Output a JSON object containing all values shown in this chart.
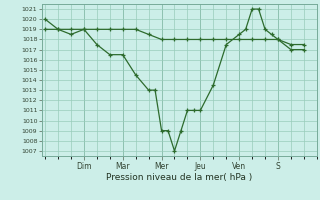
{
  "bg_color": "#cceee8",
  "grid_color": "#99ccbb",
  "line_color": "#2d6b2d",
  "xlabel": "Pression niveau de la mer( hPa )",
  "ylim": [
    1006.5,
    1021.5
  ],
  "yticks": [
    1007,
    1008,
    1009,
    1010,
    1011,
    1012,
    1013,
    1014,
    1015,
    1016,
    1017,
    1018,
    1019,
    1020,
    1021
  ],
  "xlim": [
    -0.15,
    11.35
  ],
  "day_positions": [
    1.65,
    3.3,
    4.95,
    6.6,
    8.25,
    9.9
  ],
  "day_labels": [
    "Dim",
    "Mar",
    "Mer",
    "Jeu",
    "Ven",
    "S"
  ],
  "vline_positions": [
    1.65,
    3.3,
    4.95,
    6.6,
    8.25,
    9.9
  ],
  "series1_x": [
    0.0,
    0.55,
    1.1,
    1.65,
    2.2,
    2.75,
    3.3,
    3.85,
    4.4,
    4.675,
    4.95,
    5.225,
    5.5,
    5.775,
    6.05,
    6.325,
    6.6,
    7.15,
    7.7,
    8.25,
    8.525,
    8.8,
    9.075,
    9.35,
    9.625,
    9.9,
    10.45,
    11.0
  ],
  "series1_y": [
    1020.0,
    1019.0,
    1018.5,
    1019.0,
    1017.5,
    1016.5,
    1016.5,
    1014.5,
    1013.0,
    1013.0,
    1009.0,
    1009.0,
    1007.0,
    1009.0,
    1011.0,
    1011.0,
    1011.0,
    1013.5,
    1017.5,
    1018.5,
    1019.0,
    1021.0,
    1021.0,
    1019.0,
    1018.5,
    1018.0,
    1017.0,
    1017.0
  ],
  "series2_x": [
    0.0,
    0.55,
    1.1,
    1.65,
    2.2,
    2.75,
    3.3,
    3.85,
    4.4,
    4.95,
    5.5,
    6.05,
    6.6,
    7.15,
    7.7,
    8.25,
    8.8,
    9.35,
    9.9,
    10.45,
    11.0
  ],
  "series2_y": [
    1019.0,
    1019.0,
    1019.0,
    1019.0,
    1019.0,
    1019.0,
    1019.0,
    1019.0,
    1018.5,
    1018.0,
    1018.0,
    1018.0,
    1018.0,
    1018.0,
    1018.0,
    1018.0,
    1018.0,
    1018.0,
    1018.0,
    1017.5,
    1017.5
  ]
}
